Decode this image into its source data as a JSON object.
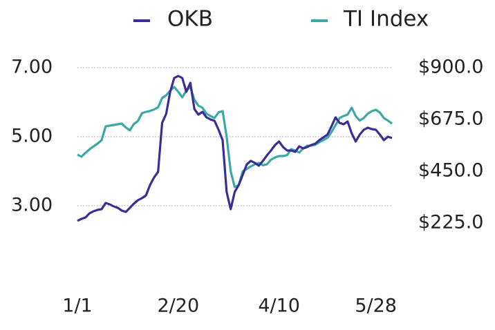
{
  "chart_data": {
    "type": "line",
    "categories": [
      "1/1",
      null,
      null,
      null,
      null,
      null,
      null,
      null,
      null,
      null,
      null,
      null,
      null,
      null,
      null,
      null,
      null,
      null,
      null,
      null,
      null,
      null,
      null,
      null,
      null,
      "2/20",
      null,
      null,
      null,
      null,
      null,
      null,
      null,
      null,
      null,
      null,
      null,
      null,
      null,
      null,
      null,
      null,
      null,
      null,
      null,
      null,
      null,
      null,
      null,
      null,
      "4/10",
      null,
      null,
      null,
      null,
      null,
      null,
      null,
      null,
      null,
      null,
      null,
      null,
      null,
      null,
      null,
      null,
      null,
      null,
      null,
      null,
      null,
      null,
      null,
      "5/28",
      null,
      null,
      null,
      null
    ],
    "series": [
      {
        "name": "OKB",
        "color": "#3a2d96",
        "values": [
          2.56,
          2.62,
          2.66,
          2.78,
          2.84,
          2.88,
          2.9,
          3.08,
          3.04,
          2.98,
          2.94,
          2.86,
          2.82,
          2.94,
          3.06,
          3.16,
          3.22,
          3.3,
          3.6,
          3.82,
          3.98,
          5.4,
          5.66,
          6.3,
          6.7,
          6.76,
          6.7,
          6.3,
          6.56,
          5.8,
          5.64,
          5.72,
          5.56,
          5.5,
          5.46,
          5.2,
          4.9,
          3.4,
          2.9,
          3.4,
          3.6,
          3.9,
          4.2,
          4.3,
          4.24,
          4.16,
          4.3,
          4.46,
          4.6,
          4.76,
          4.86,
          4.7,
          4.6,
          4.6,
          4.56,
          4.72,
          4.66,
          4.7,
          4.76,
          4.8,
          4.9,
          4.98,
          5.06,
          5.3,
          5.56,
          5.4,
          5.36,
          5.44,
          5.1,
          4.86,
          5.06,
          5.2,
          5.26,
          5.22,
          5.2,
          5.06,
          4.9,
          5.0,
          4.96
        ]
      },
      {
        "name": "TI Index",
        "color": "#3aa9a5",
        "axis": "y2",
        "values": [
          522,
          513,
          530,
          545,
          558,
          570,
          585,
          645,
          648,
          651,
          654,
          657,
          640,
          628,
          655,
          668,
          702,
          708,
          712,
          718,
          728,
          768,
          780,
          800,
          816,
          795,
          771,
          800,
          816,
          760,
          735,
          726,
          700,
          690,
          681,
          706,
          711,
          600,
          450,
          381,
          390,
          450,
          460,
          471,
          480,
          486,
          476,
          480,
          500,
          510,
          516,
          516,
          520,
          546,
          540,
          531,
          550,
          561,
          561,
          565,
          576,
          585,
          595,
          620,
          650,
          681,
          690,
          696,
          726,
          690,
          670,
          681,
          700,
          711,
          717,
          705,
          681,
          670,
          657
        ]
      }
    ],
    "ylim": [
      1,
      7
    ],
    "yticks": [
      {
        "value": 3,
        "label": "3.00"
      },
      {
        "value": 5,
        "label": "5.00"
      },
      {
        "value": 7,
        "label": "7.00"
      }
    ],
    "y2lim": [
      0,
      900
    ],
    "y2ticks": [
      {
        "value": 225,
        "label": "$225.0"
      },
      {
        "value": 450,
        "label": "$450.0"
      },
      {
        "value": 675,
        "label": "$675.0"
      },
      {
        "value": 900,
        "label": "$900.0"
      }
    ],
    "grid": true
  }
}
